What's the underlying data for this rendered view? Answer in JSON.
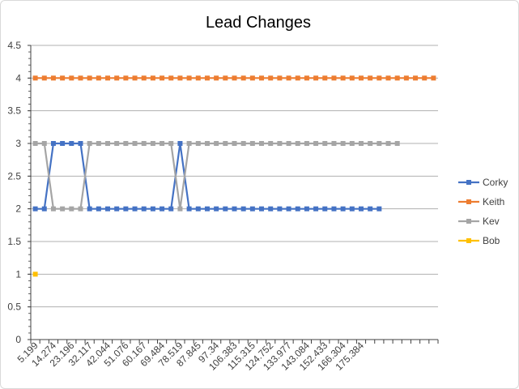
{
  "chart_data": {
    "type": "line",
    "title": "Lead Changes",
    "xlabel": "",
    "ylabel": "",
    "ylim": [
      0,
      4.5
    ],
    "y_ticks": [
      "0",
      "0.5",
      "1",
      "1.5",
      "2",
      "2.5",
      "3",
      "3.5",
      "4",
      "4.5"
    ],
    "x_tick_labels": [
      "5.199",
      "14.274",
      "23.196",
      "32.117",
      "42.044",
      "51.076",
      "60.167",
      "69.484",
      "78.519",
      "87.845",
      "97.34",
      "106.383",
      "115.315",
      "124.752",
      "133.977",
      "143.084",
      "152.433",
      "166.304",
      "175.384"
    ],
    "grid": true,
    "legend_position": "right",
    "series": [
      {
        "name": "Corky",
        "color": "#4472c4",
        "values": [
          2,
          2,
          3,
          3,
          3,
          3,
          2,
          2,
          2,
          2,
          2,
          2,
          2,
          2,
          2,
          2,
          3,
          2,
          2,
          2,
          2,
          2,
          2,
          2,
          2,
          2,
          2,
          2,
          2,
          2,
          2,
          2,
          2,
          2,
          2,
          2,
          2,
          2,
          2
        ]
      },
      {
        "name": "Keith",
        "color": "#ed7d31",
        "values": [
          4,
          4,
          4,
          4,
          4,
          4,
          4,
          4,
          4,
          4,
          4,
          4,
          4,
          4,
          4,
          4,
          4,
          4,
          4,
          4,
          4,
          4,
          4,
          4,
          4,
          4,
          4,
          4,
          4,
          4,
          4,
          4,
          4,
          4,
          4,
          4,
          4,
          4,
          4,
          4,
          4,
          4,
          4,
          4,
          4
        ]
      },
      {
        "name": "Kev",
        "color": "#a5a5a5",
        "values": [
          3,
          3,
          2,
          2,
          2,
          2,
          3,
          3,
          3,
          3,
          3,
          3,
          3,
          3,
          3,
          3,
          2,
          3,
          3,
          3,
          3,
          3,
          3,
          3,
          3,
          3,
          3,
          3,
          3,
          3,
          3,
          3,
          3,
          3,
          3,
          3,
          3,
          3,
          3,
          3,
          3
        ]
      },
      {
        "name": "Bob",
        "color": "#ffc000",
        "values": [
          1
        ]
      }
    ]
  }
}
